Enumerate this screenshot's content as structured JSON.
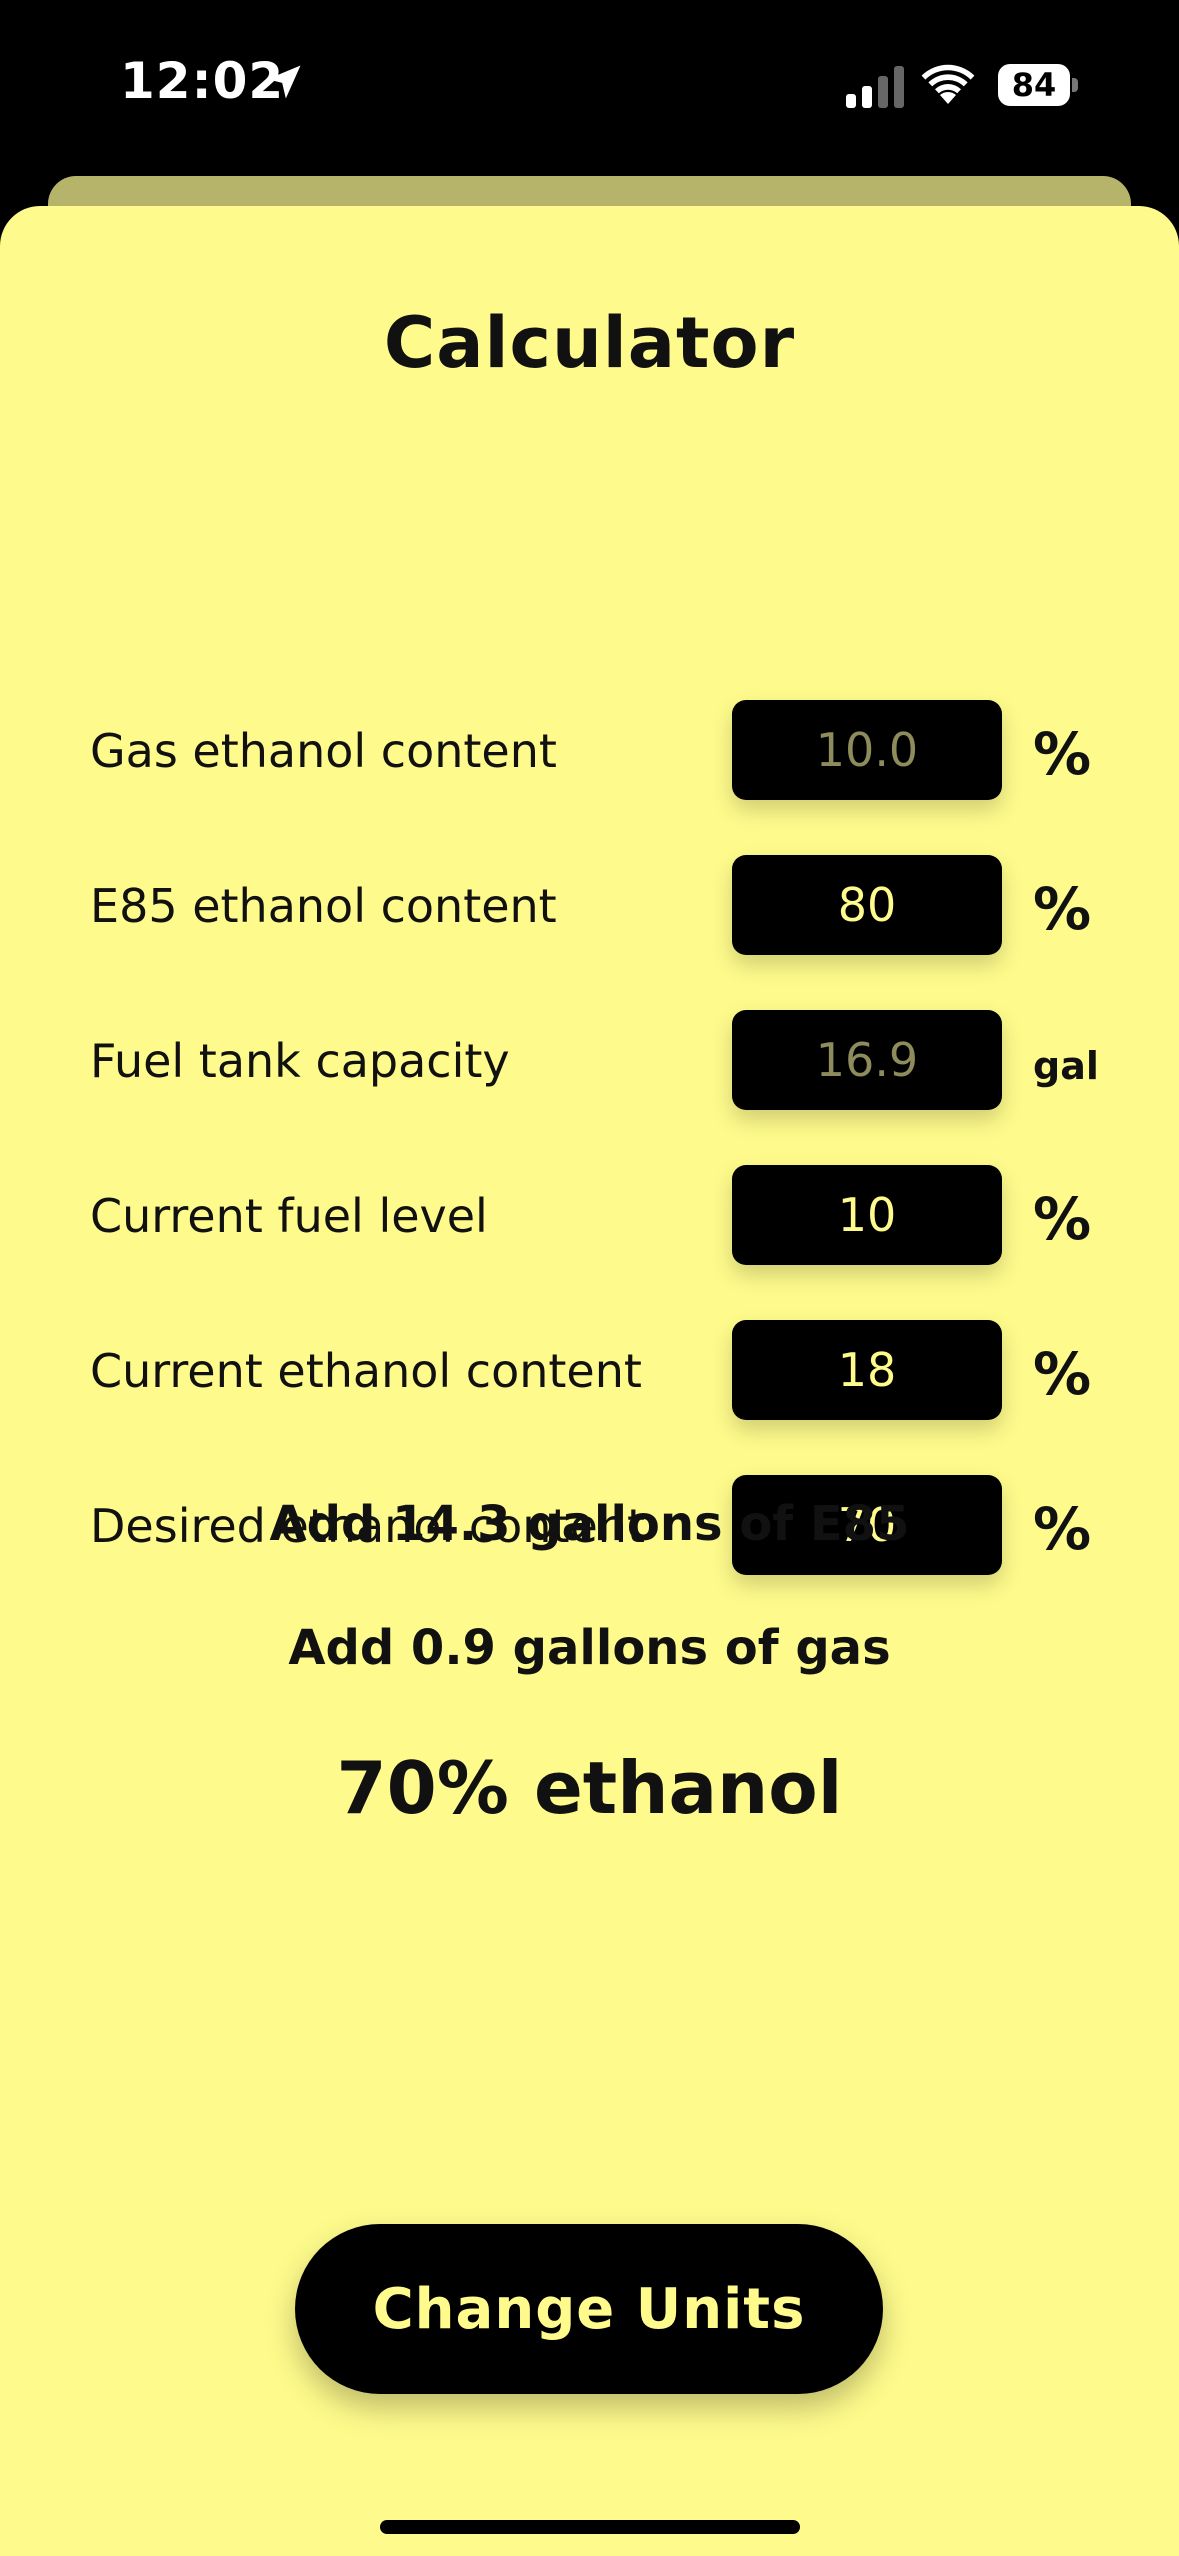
{
  "status_bar": {
    "time": "12:02",
    "battery": "84",
    "icons": [
      "location-icon",
      "signal-icon",
      "wifi-icon",
      "battery-icon"
    ]
  },
  "colors": {
    "sheet_background": "#fefb8c",
    "back_sheet": "#b6b46a",
    "input_background": "#000000",
    "input_text": "#fefb8c",
    "placeholder_text": "#8e8c5c",
    "text": "#111111"
  },
  "calculator": {
    "title": "Calculator",
    "rows": [
      {
        "label": "Gas ethanol content",
        "value": "10.0",
        "is_placeholder": true,
        "unit": "%"
      },
      {
        "label": "E85 ethanol content",
        "value": "80",
        "is_placeholder": false,
        "unit": "%"
      },
      {
        "label": "Fuel tank capacity",
        "value": "16.9",
        "is_placeholder": true,
        "unit": "gal"
      },
      {
        "label": "Current fuel level",
        "value": "10",
        "is_placeholder": false,
        "unit": "%"
      },
      {
        "label": "Current ethanol content",
        "value": "18",
        "is_placeholder": false,
        "unit": "%"
      },
      {
        "label": "Desired ethanol content",
        "value": "70",
        "is_placeholder": false,
        "unit": "%"
      }
    ]
  },
  "results": {
    "add_e85": "Add 14.3 gallons of E85",
    "add_gas": "Add 0.9 gallons of gas",
    "final_blend": "70% ethanol"
  },
  "actions": {
    "change_units_label": "Change Units"
  }
}
